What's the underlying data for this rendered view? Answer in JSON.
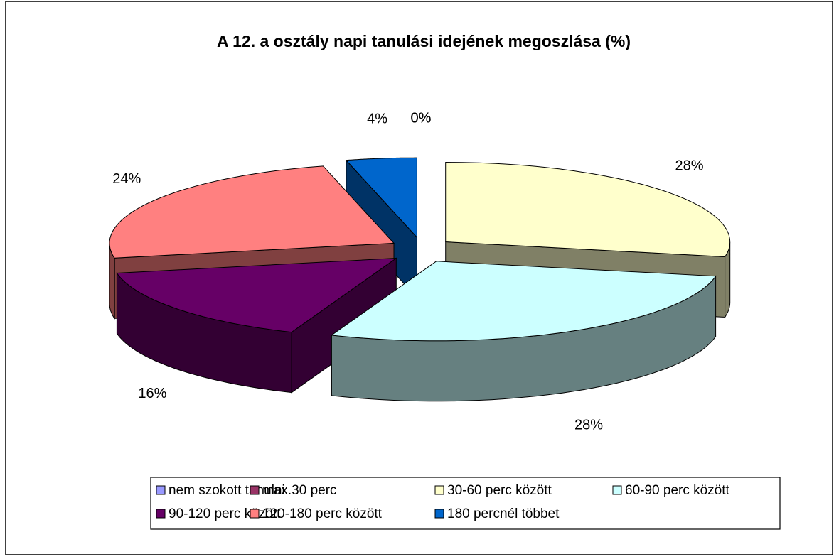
{
  "chart_data": {
    "type": "pie3d",
    "title": "A 12. a osztály napi tanulási idejének megoszlása (%)",
    "categories": [
      "nem szokott tanulni",
      "max.30 perc",
      "30-60 perc között",
      "60-90 perc között",
      "90-120 perc között",
      "120-180 perc között",
      "180 percnél többet"
    ],
    "values": [
      0,
      0,
      28,
      28,
      16,
      24,
      4
    ],
    "value_labels": [
      "0%",
      "0%",
      "28%",
      "28%",
      "16%",
      "24%",
      "4%"
    ],
    "colors": [
      "#9999FF",
      "#993366",
      "#FFFFCC",
      "#CCFFFF",
      "#660066",
      "#FF8080",
      "#0066CC"
    ],
    "legend": "bottom"
  }
}
